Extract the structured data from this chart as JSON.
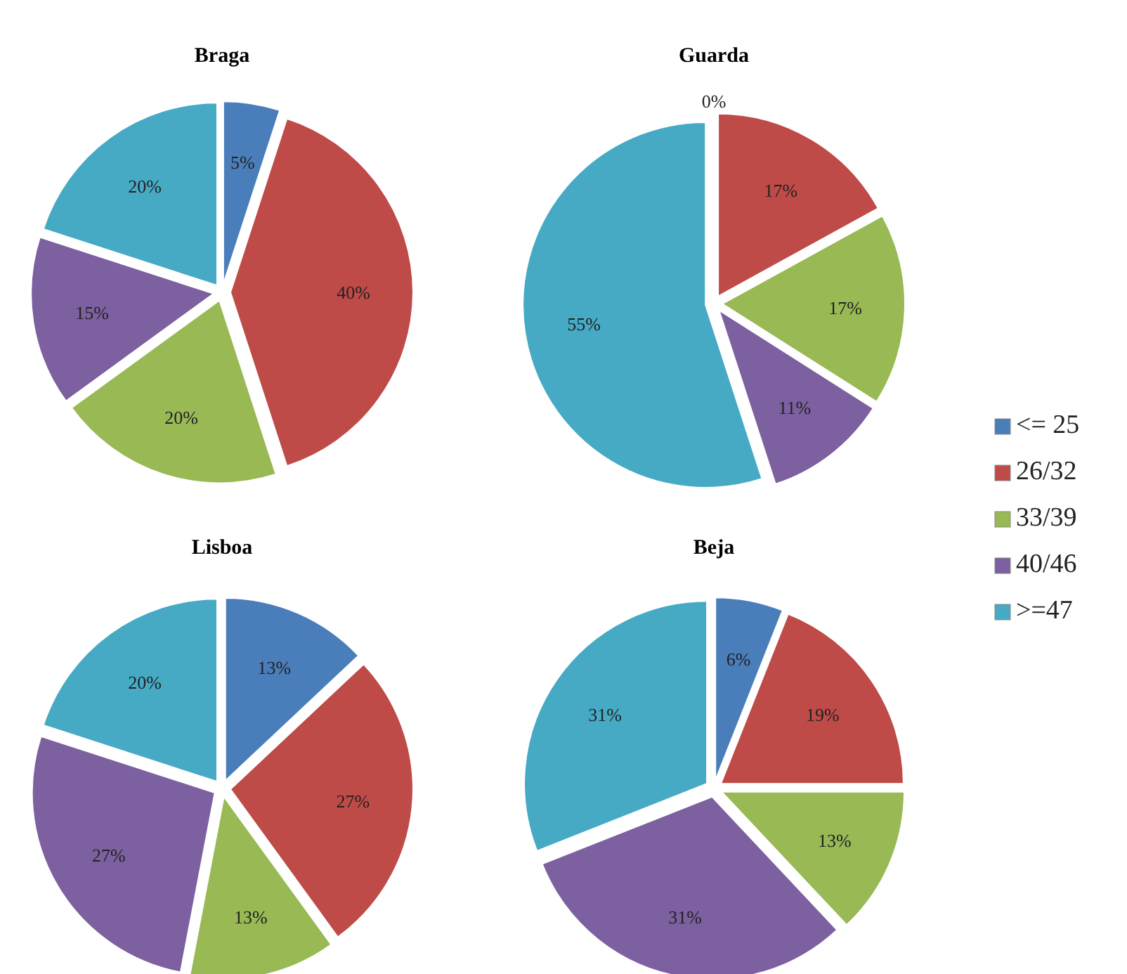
{
  "chart_data": [
    {
      "type": "pie",
      "title": "Braga",
      "values": [
        5,
        40,
        20,
        15,
        20
      ],
      "value_labels": [
        "5%",
        "40%",
        "20%",
        "15%",
        "20%"
      ],
      "colors": [
        "#4a7ebb",
        "#be4b48",
        "#98b954",
        "#7d60a0",
        "#46aac5"
      ]
    },
    {
      "type": "pie",
      "title": "Guarda",
      "categories": [
        "<= 25",
        "26/32",
        "33/39",
        "40/46",
        ">=47"
      ],
      "values": [
        0,
        17,
        17,
        11,
        55
      ],
      "value_labels": [
        "0%",
        "17%",
        "17%",
        "11%",
        "55%"
      ],
      "colors": [
        "#4a7ebb",
        "#be4b48",
        "#98b954",
        "#7d60a0",
        "#46aac5"
      ],
      "legend": "right"
    },
    {
      "type": "pie",
      "title": "Lisboa",
      "values": [
        13,
        27,
        13,
        27,
        20
      ],
      "value_labels": [
        "13%",
        "27%",
        "13%",
        "27%",
        "20%"
      ],
      "colors": [
        "#4a7ebb",
        "#be4b48",
        "#98b954",
        "#7d60a0",
        "#46aac5"
      ]
    },
    {
      "type": "pie",
      "title": "Beja",
      "values": [
        6,
        19,
        13,
        31,
        31
      ],
      "value_labels": [
        "6%",
        "19%",
        "13%",
        "31%",
        "31%"
      ],
      "colors": [
        "#4a7ebb",
        "#be4b48",
        "#98b954",
        "#7d60a0",
        "#46aac5"
      ]
    }
  ]
}
